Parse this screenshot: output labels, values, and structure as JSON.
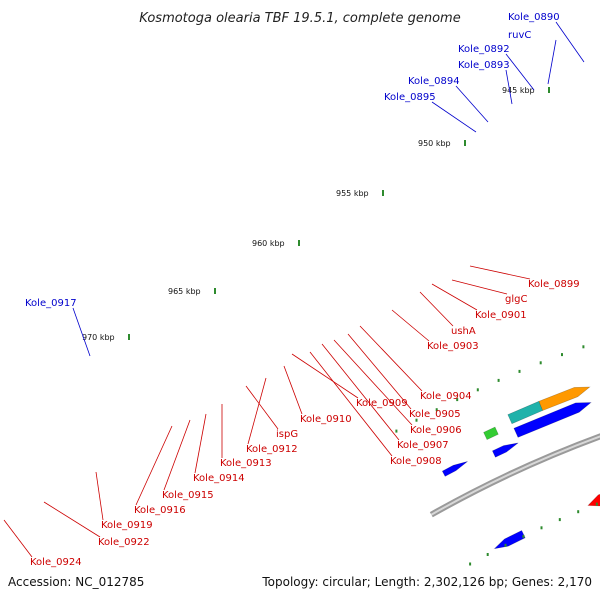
{
  "title": "Kosmotoga olearia TBF 19.5.1, complete genome",
  "footer": {
    "accession": "Accession: NC_012785",
    "summary": "Topology: circular; Length: 2,302,126 bp; Genes: 2,170"
  },
  "colors": {
    "backbone": "#8c8c8c",
    "tick": "#2e8b2e",
    "forward_label": "#0000cc",
    "reverse_label": "#cc0000",
    "red": "#ff0000",
    "blue": "#0000ff",
    "magenta": "#ff1493",
    "cyan": "#00e5ee",
    "teal": "#20b2aa",
    "orange": "#ff9900",
    "green": "#33cc33",
    "olive": "#6b8e23",
    "purple": "#7b68ee",
    "gray": "#555555",
    "lightgray": "#bbbbbb",
    "skyblue": "#1e90ff"
  },
  "scale_labels": [
    "945 kbp",
    "950 kbp",
    "955 kbp",
    "960 kbp",
    "965 kbp",
    "970 kbp"
  ],
  "forward_labels": [
    "Kole_0890",
    "ruvC",
    "Kole_0892",
    "Kole_0893",
    "Kole_0894",
    "Kole_0895",
    "Kole_0917"
  ],
  "reverse_labels": [
    "Kole_0899",
    "glgC",
    "Kole_0901",
    "ushA",
    "Kole_0903",
    "Kole_0904",
    "Kole_0905",
    "Kole_0906",
    "Kole_0907",
    "Kole_0908",
    "Kole_0909",
    "Kole_0910",
    "Kole_0912",
    "ispG",
    "Kole_0913",
    "Kole_0914",
    "Kole_0915",
    "Kole_0916",
    "Kole_0919",
    "Kole_0922",
    "Kole_0924"
  ]
}
